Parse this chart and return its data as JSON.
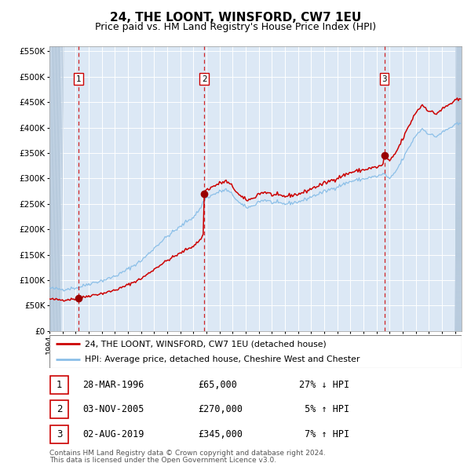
{
  "title": "24, THE LOONT, WINSFORD, CW7 1EU",
  "subtitle": "Price paid vs. HM Land Registry's House Price Index (HPI)",
  "legend_line1": "24, THE LOONT, WINSFORD, CW7 1EU (detached house)",
  "legend_line2": "HPI: Average price, detached house, Cheshire West and Chester",
  "footer1": "Contains HM Land Registry data © Crown copyright and database right 2024.",
  "footer2": "This data is licensed under the Open Government Licence v3.0.",
  "transactions": [
    {
      "num": 1,
      "date": "28-MAR-1996",
      "price": 65000,
      "pct": "27%",
      "dir": "↓",
      "year_x": 1996.23
    },
    {
      "num": 2,
      "date": "03-NOV-2005",
      "price": 270000,
      "pct": "5%",
      "dir": "↑",
      "year_x": 2005.84
    },
    {
      "num": 3,
      "date": "02-AUG-2019",
      "price": 345000,
      "pct": "7%",
      "dir": "↑",
      "year_x": 2019.59
    }
  ],
  "ylim": [
    0,
    560000
  ],
  "yticks": [
    0,
    50000,
    100000,
    150000,
    200000,
    250000,
    300000,
    350000,
    400000,
    450000,
    500000,
    550000
  ],
  "xlim_start": 1994.0,
  "xlim_end": 2025.5,
  "hpi_color": "#8bbfe8",
  "price_color": "#cc0000",
  "marker_color": "#990000",
  "vline_color": "#cc0000",
  "plot_bg": "#dce8f5",
  "grid_color": "#ffffff",
  "title_fontsize": 11,
  "subtitle_fontsize": 9
}
